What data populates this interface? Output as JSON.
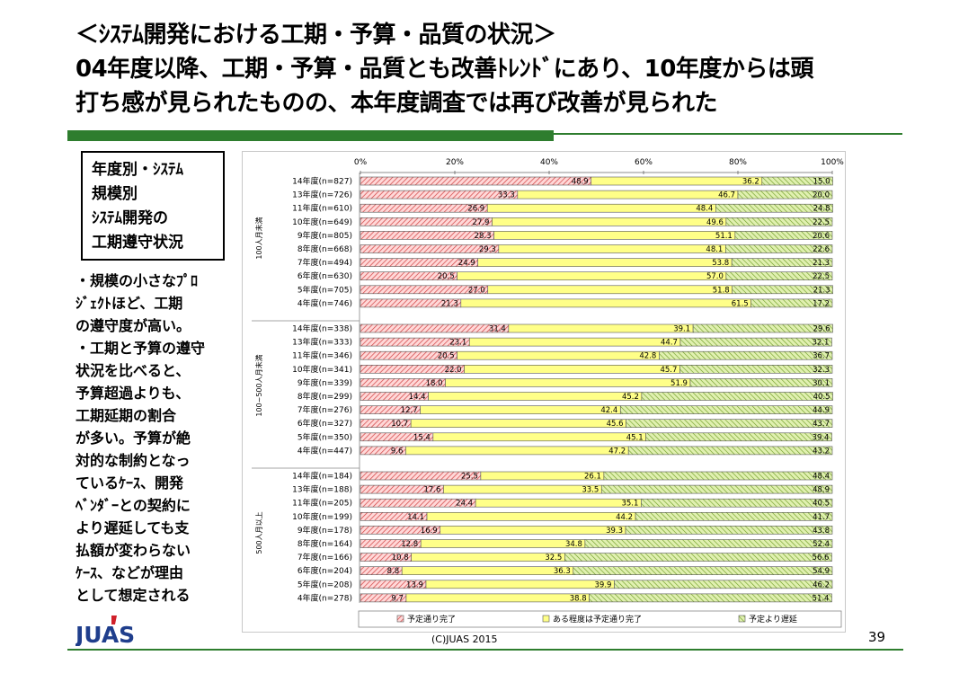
{
  "title": {
    "line1": "＜ｼｽﾃﾑ開発における工期・予算・品質の状況＞",
    "line2": "04年度以降、工期・予算・品質とも改善ﾄﾚﾝﾄﾞにあり、10年度からは頭",
    "line3": "打ち感が見られたものの、本年度調査では再び改善が見られた"
  },
  "side_box": {
    "line1": "年度別・ｼｽﾃﾑ",
    "line2": "規模別",
    "line3": "ｼｽﾃﾑ開発の",
    "line4": "工期遵守状況"
  },
  "side_notes": [
    "・規模の小さなﾌﾟﾛ",
    "ｼﾞｪｸﾄほど、工期",
    "の遵守度が高い。",
    "・工期と予算の遵守",
    "状況を比べると、",
    "予算超過よりも、",
    "工期延期の割合",
    "が多い。予算が絶",
    "対的な制約となっ",
    "ているｹｰｽ、開発",
    "ﾍﾞﾝﾀﾞｰとの契約に",
    "より遅延しても支",
    "払額が変わらない",
    "ｹｰｽ、などが理由",
    "として想定される"
  ],
  "logo": {
    "text": "JUAS",
    "color": "#1f3e8c",
    "accent": "#d0202a"
  },
  "footer": {
    "copyright": "(C)JUAS 2015",
    "page": "39"
  },
  "colors": {
    "green": "#2e7d2e",
    "series1": "#f4b6b6",
    "series1_stroke": "#d04040",
    "series2": "#ffff88",
    "series3": "#c8e08a"
  },
  "chart_data": {
    "type": "bar",
    "orientation": "horizontal-stacked-100",
    "xlim": [
      0,
      100
    ],
    "x_ticks": [
      "0%",
      "20%",
      "40%",
      "60%",
      "80%",
      "100%"
    ],
    "series_names": [
      "予定通り完了",
      "ある程度は予定通り完了",
      "予定より遅延"
    ],
    "groups": [
      {
        "label": "100人月未満",
        "rows": [
          {
            "category": "14年度(n=827)",
            "values": [
              48.9,
              36.2,
              15.0
            ],
            "labels": [
              "48.9",
              "36.2",
              "15.0"
            ]
          },
          {
            "category": "13年度(n=726)",
            "values": [
              33.3,
              46.7,
              20.0
            ],
            "labels": [
              "33.3",
              "46.7",
              "20.0"
            ]
          },
          {
            "category": "11年度(n=610)",
            "values": [
              26.9,
              48.4,
              24.8
            ],
            "labels": [
              "26.9",
              "48.4",
              "24.8"
            ]
          },
          {
            "category": "10年度(n=649)",
            "values": [
              27.9,
              49.6,
              22.5
            ],
            "labels": [
              "27.9",
              "49.6",
              "22.5"
            ]
          },
          {
            "category": "9年度(n=805)",
            "values": [
              28.3,
              51.1,
              20.6
            ],
            "labels": [
              "28.3",
              "51.1",
              "20.6"
            ]
          },
          {
            "category": "8年度(n=668)",
            "values": [
              29.3,
              48.1,
              22.6
            ],
            "labels": [
              "29.3",
              "48.1",
              "22.6"
            ]
          },
          {
            "category": "7年度(n=494)",
            "values": [
              24.9,
              53.8,
              21.3
            ],
            "labels": [
              "24.9",
              "53.8",
              "21.3"
            ]
          },
          {
            "category": "6年度(n=630)",
            "values": [
              20.5,
              57.0,
              22.5
            ],
            "labels": [
              "20.5",
              "57.0",
              "22.5"
            ]
          },
          {
            "category": "5年度(n=705)",
            "values": [
              27.0,
              51.8,
              21.3
            ],
            "labels": [
              "27.0",
              "51.8",
              "21.3"
            ]
          },
          {
            "category": "4年度(n=746)",
            "values": [
              21.3,
              61.5,
              17.2
            ],
            "labels": [
              "21.3",
              "61.5",
              "17.2"
            ]
          }
        ]
      },
      {
        "label": "100~500人月未満",
        "rows": [
          {
            "category": "14年度(n=338)",
            "values": [
              31.4,
              39.1,
              29.6
            ],
            "labels": [
              "31.4",
              "39.1",
              "29.6"
            ]
          },
          {
            "category": "13年度(n=333)",
            "values": [
              23.1,
              44.7,
              32.1
            ],
            "labels": [
              "23.1",
              "44.7",
              "32.1"
            ]
          },
          {
            "category": "11年度(n=346)",
            "values": [
              20.5,
              42.8,
              36.7
            ],
            "labels": [
              "20.5",
              "42.8",
              "36.7"
            ]
          },
          {
            "category": "10年度(n=341)",
            "values": [
              22.0,
              45.7,
              32.3
            ],
            "labels": [
              "22.0",
              "45.7",
              "32.3"
            ]
          },
          {
            "category": "9年度(n=339)",
            "values": [
              18.0,
              51.9,
              30.1
            ],
            "labels": [
              "18.0",
              "51.9",
              "30.1"
            ]
          },
          {
            "category": "8年度(n=299)",
            "values": [
              14.4,
              45.2,
              40.5
            ],
            "labels": [
              "14.4",
              "45.2",
              "40.5"
            ]
          },
          {
            "category": "7年度(n=276)",
            "values": [
              12.7,
              42.4,
              44.9
            ],
            "labels": [
              "12.7",
              "42.4",
              "44.9"
            ]
          },
          {
            "category": "6年度(n=327)",
            "values": [
              10.7,
              45.6,
              43.7
            ],
            "labels": [
              "10.7",
              "45.6",
              "43.7"
            ]
          },
          {
            "category": "5年度(n=350)",
            "values": [
              15.4,
              45.1,
              39.4
            ],
            "labels": [
              "15.4",
              "45.1",
              "39.4"
            ]
          },
          {
            "category": "4年度(n=447)",
            "values": [
              9.6,
              47.2,
              43.2
            ],
            "labels": [
              "9.6",
              "47.2",
              "43.2"
            ]
          }
        ]
      },
      {
        "label": "500人月以上",
        "rows": [
          {
            "category": "14年度(n=184)",
            "values": [
              25.5,
              26.1,
              48.4
            ],
            "labels": [
              "25.5",
              "26.1",
              "48.4"
            ]
          },
          {
            "category": "13年度(n=188)",
            "values": [
              17.6,
              33.5,
              48.9
            ],
            "labels": [
              "17.6",
              "33.5",
              "48.9"
            ]
          },
          {
            "category": "11年度(n=205)",
            "values": [
              24.4,
              35.1,
              40.5
            ],
            "labels": [
              "24.4",
              "35.1",
              "40.5"
            ]
          },
          {
            "category": "10年度(n=199)",
            "values": [
              14.1,
              44.2,
              41.7
            ],
            "labels": [
              "14.1",
              "44.2",
              "41.7"
            ]
          },
          {
            "category": "9年度(n=178)",
            "values": [
              16.9,
              39.3,
              43.8
            ],
            "labels": [
              "16.9",
              "39.3",
              "43.8"
            ]
          },
          {
            "category": "8年度(n=164)",
            "values": [
              12.8,
              34.8,
              52.4
            ],
            "labels": [
              "12.8",
              "34.8",
              "52.4"
            ]
          },
          {
            "category": "7年度(n=166)",
            "values": [
              10.8,
              32.5,
              56.6
            ],
            "labels": [
              "10.8",
              "32.5",
              "56.6"
            ]
          },
          {
            "category": "6年度(n=204)",
            "values": [
              8.8,
              36.3,
              54.9
            ],
            "labels": [
              "8.8",
              "36.3",
              "54.9"
            ]
          },
          {
            "category": "5年度(n=208)",
            "values": [
              13.9,
              39.9,
              46.2
            ],
            "labels": [
              "13.9",
              "39.9",
              "46.2"
            ]
          },
          {
            "category": "4年度(n=278)",
            "values": [
              9.7,
              38.8,
              51.4
            ],
            "labels": [
              "9.7",
              "38.8",
              "51.4"
            ]
          }
        ]
      }
    ],
    "legend_position": "bottom"
  }
}
